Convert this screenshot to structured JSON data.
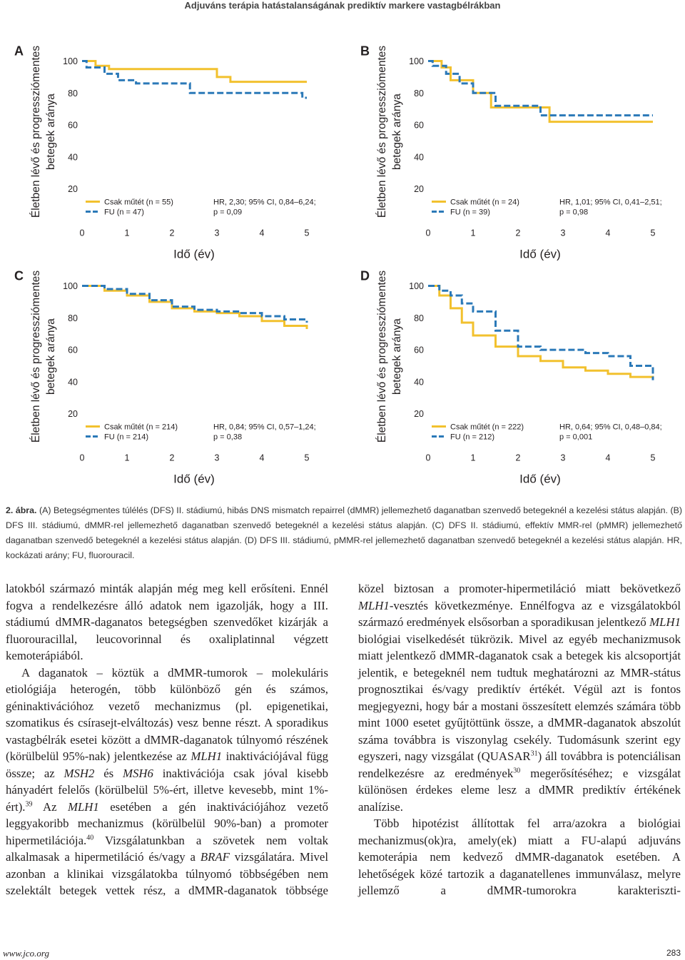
{
  "header": {
    "title": "Adjuváns terápia hatástalanságának prediktív markere vastagbélrákban"
  },
  "chart_data": [
    {
      "type": "line",
      "drawstyle": "steps-post",
      "panel": "A",
      "ylabel": [
        "Életben lévő és progressziómentes",
        "betegek aránya"
      ],
      "xlabel": "Idő (év)",
      "xlim": [
        0,
        5
      ],
      "ylim": [
        0,
        100
      ],
      "xticks": [
        0,
        1,
        2,
        3,
        4,
        5
      ],
      "yticks": [
        20,
        40,
        60,
        80,
        100
      ],
      "annotation": [
        "HR, 2,30; 95% CI, 0,84–6,24;",
        "p = 0,09"
      ],
      "series": [
        {
          "name": "Csak műtét (n = 55)",
          "color": "#f2c12e",
          "dashed": false,
          "x": [
            0,
            0.3,
            0.6,
            3.0,
            3.3,
            5.0
          ],
          "values": [
            100,
            97,
            95,
            90,
            87,
            87
          ]
        },
        {
          "name": "FU (n = 47)",
          "color": "#2b79b8",
          "dashed": true,
          "x": [
            0,
            0.1,
            0.5,
            0.8,
            1.2,
            2.4,
            4.9,
            5.0
          ],
          "values": [
            100,
            96,
            92,
            88,
            86,
            80,
            77,
            77
          ]
        }
      ]
    },
    {
      "type": "line",
      "drawstyle": "steps-post",
      "panel": "B",
      "ylabel": [
        "Életben lévő és progressziómentes",
        "betegek aránya"
      ],
      "xlabel": "Idő (év)",
      "xlim": [
        0,
        5
      ],
      "ylim": [
        0,
        100
      ],
      "xticks": [
        0,
        1,
        2,
        3,
        4,
        5
      ],
      "yticks": [
        20,
        40,
        60,
        80,
        100
      ],
      "annotation": [
        "HR, 1,01; 95% CI, 0,41–2,51;",
        "p = 0,98"
      ],
      "series": [
        {
          "name": "Csak műtét (n = 24)",
          "color": "#f2c12e",
          "dashed": false,
          "x": [
            0,
            0.3,
            0.5,
            1.0,
            1.4,
            2.7,
            5.0
          ],
          "values": [
            100,
            96,
            88,
            80,
            71,
            62,
            62
          ]
        },
        {
          "name": "FU (n = 39)",
          "color": "#2b79b8",
          "dashed": true,
          "x": [
            0,
            0.1,
            0.4,
            0.7,
            1.0,
            1.5,
            2.5,
            5.0
          ],
          "values": [
            100,
            97,
            92,
            86,
            80,
            72,
            66,
            66
          ]
        }
      ]
    },
    {
      "type": "line",
      "drawstyle": "steps-post",
      "panel": "C",
      "ylabel": [
        "Életben lévő és progressziómentes",
        "betegek aránya"
      ],
      "xlabel": "Idő (év)",
      "xlim": [
        0,
        5
      ],
      "ylim": [
        0,
        100
      ],
      "xticks": [
        0,
        1,
        2,
        3,
        4,
        5
      ],
      "yticks": [
        20,
        40,
        60,
        80,
        100
      ],
      "annotation": [
        "HR, 0,84; 95% CI, 0,57–1,24;",
        "p = 0,38"
      ],
      "series": [
        {
          "name": "Csak műtét (n = 214)",
          "color": "#f2c12e",
          "dashed": false,
          "x": [
            0,
            0.5,
            1.0,
            1.5,
            2.0,
            2.5,
            3.0,
            3.5,
            4.0,
            4.5,
            5.0
          ],
          "values": [
            100,
            97,
            94,
            90,
            86,
            84,
            83,
            81,
            78,
            75,
            73
          ]
        },
        {
          "name": "FU (n = 214)",
          "color": "#2b79b8",
          "dashed": true,
          "x": [
            0,
            0.5,
            1.0,
            1.5,
            2.0,
            2.5,
            3.0,
            3.5,
            4.0,
            4.5,
            5.0
          ],
          "values": [
            100,
            98,
            95,
            91,
            87,
            85,
            84,
            83,
            81,
            79,
            77
          ]
        }
      ]
    },
    {
      "type": "line",
      "drawstyle": "steps-post",
      "panel": "D",
      "ylabel": [
        "Életben lévő és progressziómentes",
        "betegek aránya"
      ],
      "xlabel": "Idő (év)",
      "xlim": [
        0,
        5
      ],
      "ylim": [
        0,
        100
      ],
      "xticks": [
        0,
        1,
        2,
        3,
        4,
        5
      ],
      "yticks": [
        20,
        40,
        60,
        80,
        100
      ],
      "annotation": [
        "HR, 0,64; 95% CI, 0,48–0,84;",
        "p = 0,001"
      ],
      "series": [
        {
          "name": "Csak műtét (n = 222)",
          "color": "#f2c12e",
          "dashed": false,
          "x": [
            0,
            0.25,
            0.5,
            0.75,
            1.0,
            1.5,
            2.0,
            2.5,
            3.0,
            3.5,
            4.0,
            4.5,
            5.0
          ],
          "values": [
            100,
            94,
            86,
            77,
            69,
            62,
            56,
            53,
            49,
            47,
            45,
            43,
            42
          ]
        },
        {
          "name": "FU (n = 212)",
          "color": "#2b79b8",
          "dashed": true,
          "x": [
            0,
            0.25,
            0.5,
            0.75,
            1.0,
            1.5,
            2.0,
            2.5,
            3.0,
            3.5,
            4.0,
            4.5,
            5.0
          ],
          "values": [
            100,
            97,
            94,
            89,
            84,
            72,
            62,
            60,
            60,
            58,
            56,
            50,
            41
          ]
        }
      ]
    }
  ],
  "caption": {
    "label": "2. ábra.",
    "text": "(A) Betegségmentes túlélés (DFS) II. stádiumú, hibás DNS mismatch repairrel (dMMR) jellemezhető daganatban szenvedő betegeknél a kezelési státus alapján. (B) DFS III. stádiumú, dMMR-rel jellemezhető daganatban szenvedő betegeknél a kezelési státus alapján. (C) DFS II. stádiumú, effektív MMR-rel (pMMR) jellemezhető daganatban szenvedő betegeknél a kezelési státus alapján. (D) DFS III. stádiumú, pMMR-rel jellemezhető daganatban szenvedő betegeknél a kezelési státus alapján. HR, kockázati arány; FU, fluorouracil."
  },
  "columns": [
    [
      [
        "latokból származó minták alapján még meg kell erősíteni. Ennél fogva a rendelkezésre álló adatok nem igazolják, hogy a III. stádiumú dMMR-daganatos betegségben szenvedőket kizárják a fluorouracillal, leucovorinnal és oxaliplatinnal végzett kemoterápiából."
      ],
      [
        "A daganatok – köztük a dMMR-tumorok – molekuláris etiológiája heterogén, több különböző gén és számos, géninaktivációhoz vezető mechanizmus (pl. epigenetikai, szomatikus és csírasejt-elváltozás) vesz benne részt. A sporadikus vastagbélrák esetei között a dMMR-daganatok túlnyomó részének (körülbelül 95%-nak) jelentkezése az ",
        {
          "i": "MLH1"
        },
        " inaktivációjával függ össze; az ",
        {
          "i": "MSH2"
        },
        " és ",
        {
          "i": "MSH6"
        },
        " inaktivációja csak jóval kisebb hányadért felelős (körülbelül 5%-ért, illetve kevesebb, mint 1%-ért).",
        {
          "sup": "39"
        },
        " Az ",
        {
          "i": "MLH1"
        },
        " esetében a gén inaktivációjához vezető leggyakoribb mechanizmus (körülbelül 90%-ban) a promoter hipermetilációja.",
        {
          "sup": "40"
        },
        " Vizsgálatunkban a szövetek nem voltak alkalmasak a hipermetiláció és/vagy a ",
        {
          "i": "BRAF"
        },
        " vizsgálatára. Mivel azonban a klinikai vizsgálatokba túlnyomó többségében nem szelektált betegek vettek rész, a dMMR-daganatok többsége"
      ]
    ],
    [
      [
        "közel biztosan a promoter-hipermetiláció miatt bekövetkező ",
        {
          "i": "MLH1"
        },
        "-vesztés következménye. Ennélfogva az e vizsgálatokból származó eredmények elsősorban a sporadikusan jelentkező ",
        {
          "i": "MLH1"
        },
        " biológiai viselkedését tükrözik. Mivel az egyéb mechanizmusok miatt jelentkező dMMR-daganatok csak a betegek kis alcsoportját jelentik, e betegeknél nem tudtuk meghatározni az MMR-státus prognosztikai és/vagy prediktív értékét. Végül azt is fontos megjegyezni, hogy bár a mostani összesített elemzés számára több mint 1000 esetet gyűjtöttünk össze, a dMMR-daganatok abszolút száma továbbra is viszonylag csekély. Tudomásunk szerint egy egyszeri, nagy vizsgálat (QUASAR",
        {
          "sup": "31"
        },
        ") áll továbbra is potenciálisan rendelkezésre az eredmények",
        {
          "sup": "30"
        },
        " megerősítéséhez; e vizsgálat különösen érdekes eleme lesz a dMMR prediktív értékének analízise."
      ],
      [
        "Több hipotézist állítottak fel arra/azokra a biológiai mechanizmus(ok)ra, amely(ek) miatt a FU-alapú adjuváns kemoterápia nem kedvező dMMR-daganatok esetében. A lehetőségek közé tartozik a daganatellenes immunválasz, melyre jellemző a dMMR-tumorokra karakteriszti-"
      ]
    ]
  ],
  "footer": {
    "url": "www.jco.org",
    "page": "283"
  }
}
